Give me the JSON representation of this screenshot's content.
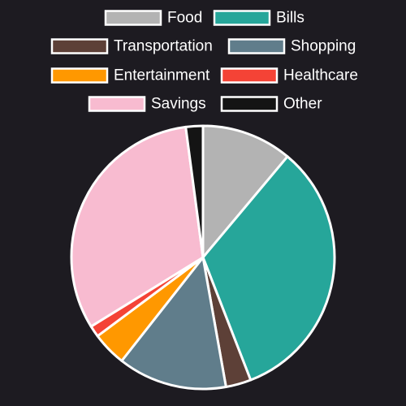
{
  "chart_data": {
    "type": "pie",
    "title": "",
    "legend_position": "top",
    "start_angle": "top",
    "direction": "clockwise",
    "slices": [
      {
        "label": "Food",
        "value": 11.1,
        "color": "#b3b3b3"
      },
      {
        "label": "Bills",
        "value": 33.0,
        "color": "#26a69a"
      },
      {
        "label": "Transportation",
        "value": 3.1,
        "color": "#5d4037"
      },
      {
        "label": "Shopping",
        "value": 13.4,
        "color": "#607d8b"
      },
      {
        "label": "Entertainment",
        "value": 4.2,
        "color": "#ff9800"
      },
      {
        "label": "Healthcare",
        "value": 1.4,
        "color": "#f44336"
      },
      {
        "label": "Savings",
        "value": 31.7,
        "color": "#f8bbd0"
      },
      {
        "label": "Other",
        "value": 2.1,
        "color": "#141414"
      }
    ]
  }
}
